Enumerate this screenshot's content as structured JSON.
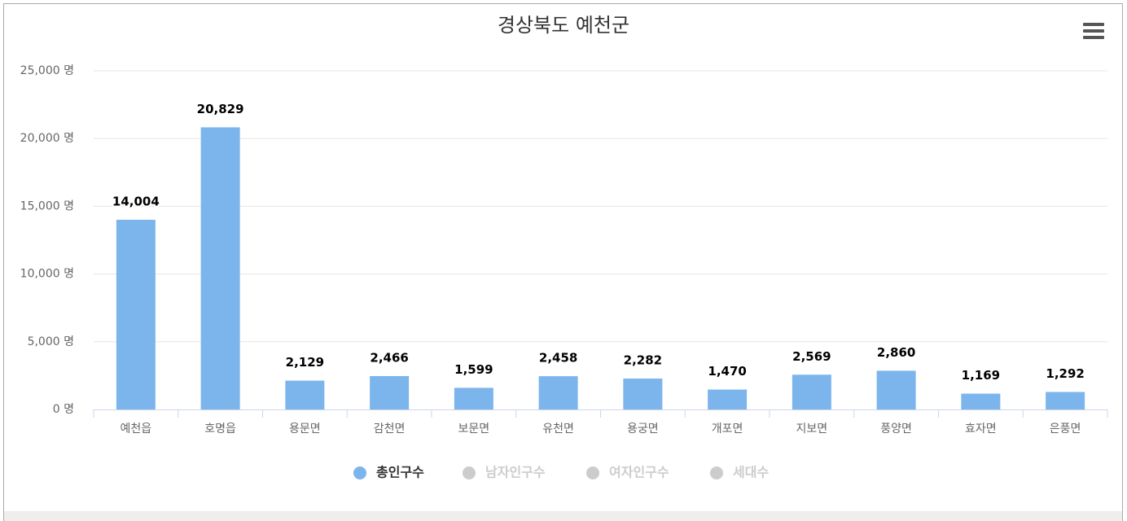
{
  "chart_data": {
    "type": "bar",
    "title": "경상북도 예천군",
    "categories": [
      "예천읍",
      "호명읍",
      "용문면",
      "감천면",
      "보문면",
      "유천면",
      "용궁면",
      "개포면",
      "지보면",
      "풍양면",
      "효자면",
      "은풍면"
    ],
    "series": [
      {
        "name": "총인구수",
        "color": "#7cb5ec",
        "values": [
          14004,
          20829,
          2129,
          2466,
          1599,
          2458,
          2282,
          1470,
          2569,
          2860,
          1169,
          1292
        ],
        "value_labels": [
          "14,004",
          "20,829",
          "2,129",
          "2,466",
          "1,599",
          "2,458",
          "2,282",
          "1,470",
          "2,569",
          "2,860",
          "1,169",
          "1,292"
        ]
      }
    ],
    "hidden_series": [
      {
        "name": "남자인구수",
        "color": "#cccccc"
      },
      {
        "name": "여자인구수",
        "color": "#cccccc"
      },
      {
        "name": "세대수",
        "color": "#cccccc"
      }
    ],
    "ylim": [
      0,
      25000
    ],
    "yticks": [
      {
        "value": 0,
        "label": "0 명"
      },
      {
        "value": 5000,
        "label": "5,000 명"
      },
      {
        "value": 10000,
        "label": "10,000 명"
      },
      {
        "value": 15000,
        "label": "15,000 명"
      },
      {
        "value": 20000,
        "label": "20,000 명"
      },
      {
        "value": 25000,
        "label": "25,000 명"
      }
    ],
    "grid": true
  }
}
